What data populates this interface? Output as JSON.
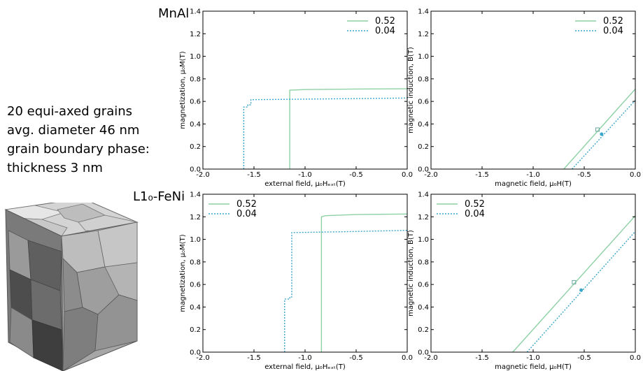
{
  "description": {
    "lines": [
      "20 equi-axed grains",
      "avg. diameter 46 nm",
      "grain boundary phase:",
      "thickness 3 nm"
    ]
  },
  "materials": {
    "mnal": "MnAl",
    "feni": "L1₀-FeNi"
  },
  "colors": {
    "series_052": "#8ed1a4",
    "series_004": "#3aa6c8",
    "marker": "#6aa8a0"
  },
  "chart_data": [
    {
      "id": "mnal-magnetization",
      "type": "line",
      "xlabel": "external field, μ₀Hₑₓₜ(T)",
      "ylabel": "magnetization, μ₀M(T)",
      "xlim": [
        -2.0,
        0.0
      ],
      "ylim": [
        0.0,
        1.4
      ],
      "xticks": [
        -2.0,
        -1.5,
        -1.0,
        -0.5,
        0.0
      ],
      "yticks": [
        0.0,
        0.2,
        0.4,
        0.6,
        0.8,
        1.0,
        1.2,
        1.4
      ],
      "legend": "top-right",
      "grid": false,
      "series": [
        {
          "name": "0.52",
          "style": "solid",
          "x": [
            -1.15,
            -1.15,
            -1.0,
            -0.5,
            0.0
          ],
          "y": [
            0.0,
            0.7,
            0.705,
            0.71,
            0.712
          ]
        },
        {
          "name": "0.04",
          "style": "dotted",
          "x": [
            -1.6,
            -1.6,
            -1.56,
            -1.56,
            -1.53,
            -1.53,
            -1.0,
            -0.5,
            0.0
          ],
          "y": [
            0.0,
            0.55,
            0.55,
            0.57,
            0.57,
            0.615,
            0.62,
            0.625,
            0.63
          ]
        }
      ]
    },
    {
      "id": "mnal-induction",
      "type": "line",
      "xlabel": "magnetic field, μ₀H(T)",
      "ylabel": "magnetic induction, B(T)",
      "xlim": [
        -2.0,
        0.0
      ],
      "ylim": [
        0.0,
        1.4
      ],
      "xticks": [
        -2.0,
        -1.5,
        -1.0,
        -0.5,
        0.0
      ],
      "yticks": [
        0.0,
        0.2,
        0.4,
        0.6,
        0.8,
        1.0,
        1.2,
        1.4
      ],
      "legend": "top-right",
      "grid": false,
      "series": [
        {
          "name": "0.52",
          "style": "solid",
          "x": [
            -0.7,
            0.0
          ],
          "y": [
            0.0,
            0.71
          ]
        },
        {
          "name": "0.04",
          "style": "dotted",
          "x": [
            -0.62,
            0.0
          ],
          "y": [
            0.0,
            0.61
          ]
        }
      ],
      "markers": [
        {
          "series": "0.52",
          "shape": "square",
          "x": [
            -0.37
          ],
          "y": [
            0.35
          ]
        },
        {
          "series": "0.04",
          "shape": "circle",
          "x": [
            -0.33
          ],
          "y": [
            0.31
          ]
        }
      ]
    },
    {
      "id": "feni-magnetization",
      "type": "line",
      "xlabel": "external field, μ₀Hₑₓₜ(T)",
      "ylabel": "magnetization, μ₀M(T)",
      "xlim": [
        -2.0,
        0.0
      ],
      "ylim": [
        0.0,
        1.4
      ],
      "xticks": [
        -2.0,
        -1.5,
        -1.0,
        -0.5,
        0.0
      ],
      "yticks": [
        0.0,
        0.2,
        0.4,
        0.6,
        0.8,
        1.0,
        1.2,
        1.4
      ],
      "legend": "top-left",
      "grid": false,
      "series": [
        {
          "name": "0.52",
          "style": "solid",
          "x": [
            -0.84,
            -0.84,
            -0.8,
            -0.5,
            0.0
          ],
          "y": [
            0.0,
            1.2,
            1.21,
            1.22,
            1.225
          ]
        },
        {
          "name": "0.04",
          "style": "dotted",
          "x": [
            -1.2,
            -1.2,
            -1.15,
            -1.15,
            -1.13,
            -1.13,
            -0.8,
            -0.5,
            0.0
          ],
          "y": [
            0.0,
            0.47,
            0.47,
            0.49,
            0.49,
            1.06,
            1.065,
            1.07,
            1.08
          ]
        }
      ]
    },
    {
      "id": "feni-induction",
      "type": "line",
      "xlabel": "magnetic field, μ₀H(T)",
      "ylabel": "magnetic induction, B(T)",
      "xlim": [
        -2.0,
        0.0
      ],
      "ylim": [
        0.0,
        1.4
      ],
      "xticks": [
        -2.0,
        -1.5,
        -1.0,
        -0.5,
        0.0
      ],
      "yticks": [
        0.0,
        0.2,
        0.4,
        0.6,
        0.8,
        1.0,
        1.2,
        1.4
      ],
      "legend": "top-left",
      "grid": false,
      "series": [
        {
          "name": "0.52",
          "style": "solid",
          "x": [
            -1.2,
            0.0
          ],
          "y": [
            0.0,
            1.21
          ]
        },
        {
          "name": "0.04",
          "style": "dotted",
          "x": [
            -1.06,
            0.0
          ],
          "y": [
            0.0,
            1.07
          ]
        }
      ],
      "markers": [
        {
          "series": "0.52",
          "shape": "square",
          "x": [
            -0.6
          ],
          "y": [
            0.62
          ]
        },
        {
          "series": "0.04",
          "shape": "circle",
          "x": [
            -0.53
          ],
          "y": [
            0.55
          ]
        }
      ]
    }
  ]
}
